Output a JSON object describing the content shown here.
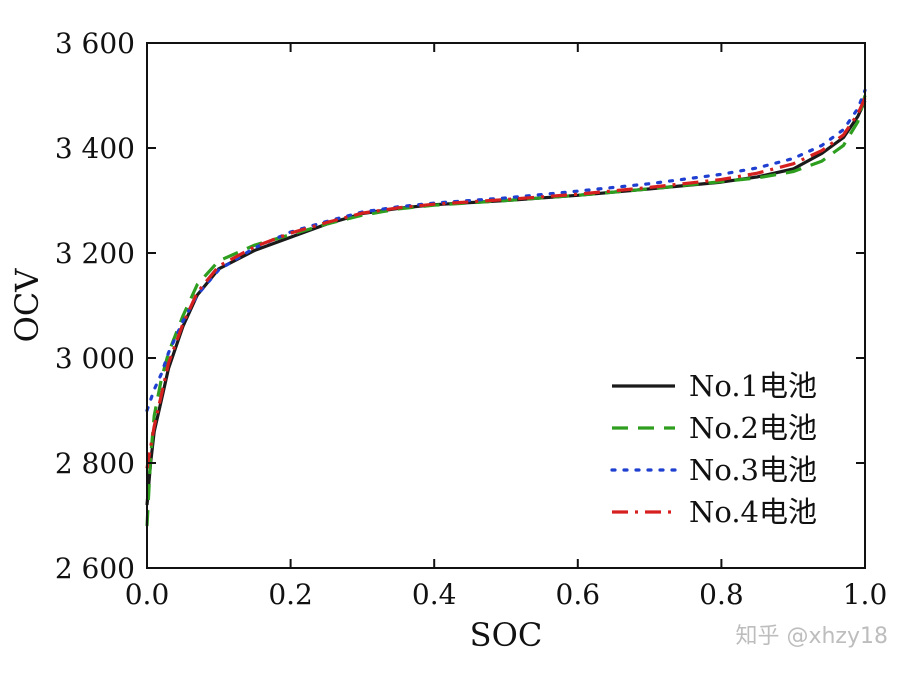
{
  "chart_data": {
    "type": "line",
    "title": "",
    "xlabel": "SOC",
    "ylabel": "OCV",
    "xlim": [
      0.0,
      1.0
    ],
    "ylim": [
      2600,
      3600
    ],
    "x_ticks": [
      0.0,
      0.2,
      0.4,
      0.6,
      0.8,
      1.0
    ],
    "x_tick_labels": [
      "0.0",
      "0.2",
      "0.4",
      "0.6",
      "0.8",
      "1.0"
    ],
    "y_ticks": [
      2600,
      2800,
      3000,
      3200,
      3400,
      3600
    ],
    "y_tick_labels": [
      "2 600",
      "2 800",
      "3 000",
      "3 200",
      "3 400",
      "3 600"
    ],
    "legend_position": "bottom-right",
    "grid": false,
    "series": [
      {
        "name": "No.1电池",
        "color": "#1a1a1a",
        "dash": "solid",
        "x": [
          0.0,
          0.005,
          0.01,
          0.02,
          0.03,
          0.05,
          0.07,
          0.1,
          0.15,
          0.2,
          0.25,
          0.3,
          0.35,
          0.4,
          0.5,
          0.6,
          0.7,
          0.8,
          0.85,
          0.9,
          0.94,
          0.97,
          0.99,
          1.0
        ],
        "y": [
          2720,
          2800,
          2860,
          2920,
          2980,
          3060,
          3120,
          3170,
          3205,
          3230,
          3255,
          3275,
          3285,
          3292,
          3300,
          3310,
          3322,
          3335,
          3345,
          3360,
          3390,
          3420,
          3460,
          3490
        ]
      },
      {
        "name": "No.2电池",
        "color": "#2e9e1f",
        "dash": "dashed",
        "x": [
          0.0,
          0.005,
          0.01,
          0.02,
          0.03,
          0.05,
          0.07,
          0.1,
          0.15,
          0.2,
          0.25,
          0.3,
          0.35,
          0.4,
          0.5,
          0.6,
          0.7,
          0.8,
          0.85,
          0.9,
          0.94,
          0.97,
          0.99,
          1.0
        ],
        "y": [
          2680,
          2810,
          2890,
          2960,
          3010,
          3080,
          3140,
          3185,
          3215,
          3235,
          3255,
          3272,
          3284,
          3291,
          3300,
          3310,
          3322,
          3336,
          3343,
          3355,
          3375,
          3405,
          3450,
          3500
        ]
      },
      {
        "name": "No.3电池",
        "color": "#1f3fd1",
        "dash": "dotted",
        "x": [
          0.0,
          0.005,
          0.01,
          0.02,
          0.03,
          0.05,
          0.07,
          0.1,
          0.15,
          0.2,
          0.25,
          0.3,
          0.35,
          0.4,
          0.5,
          0.6,
          0.7,
          0.8,
          0.85,
          0.9,
          0.94,
          0.97,
          0.99,
          1.0
        ],
        "y": [
          2900,
          2920,
          2940,
          2970,
          3010,
          3070,
          3120,
          3168,
          3210,
          3240,
          3260,
          3278,
          3288,
          3295,
          3305,
          3318,
          3332,
          3350,
          3362,
          3380,
          3405,
          3435,
          3475,
          3510
        ]
      },
      {
        "name": "No.4电池",
        "color": "#d62020",
        "dash": "dashdot",
        "x": [
          0.0,
          0.005,
          0.01,
          0.02,
          0.03,
          0.05,
          0.07,
          0.1,
          0.15,
          0.2,
          0.25,
          0.3,
          0.35,
          0.4,
          0.5,
          0.6,
          0.7,
          0.8,
          0.85,
          0.9,
          0.94,
          0.97,
          0.99,
          1.0
        ],
        "y": [
          2790,
          2830,
          2870,
          2930,
          2990,
          3065,
          3125,
          3175,
          3212,
          3238,
          3258,
          3276,
          3286,
          3293,
          3302,
          3312,
          3325,
          3340,
          3352,
          3370,
          3395,
          3425,
          3465,
          3495
        ]
      }
    ]
  },
  "watermark": "知乎 @xhzy18"
}
